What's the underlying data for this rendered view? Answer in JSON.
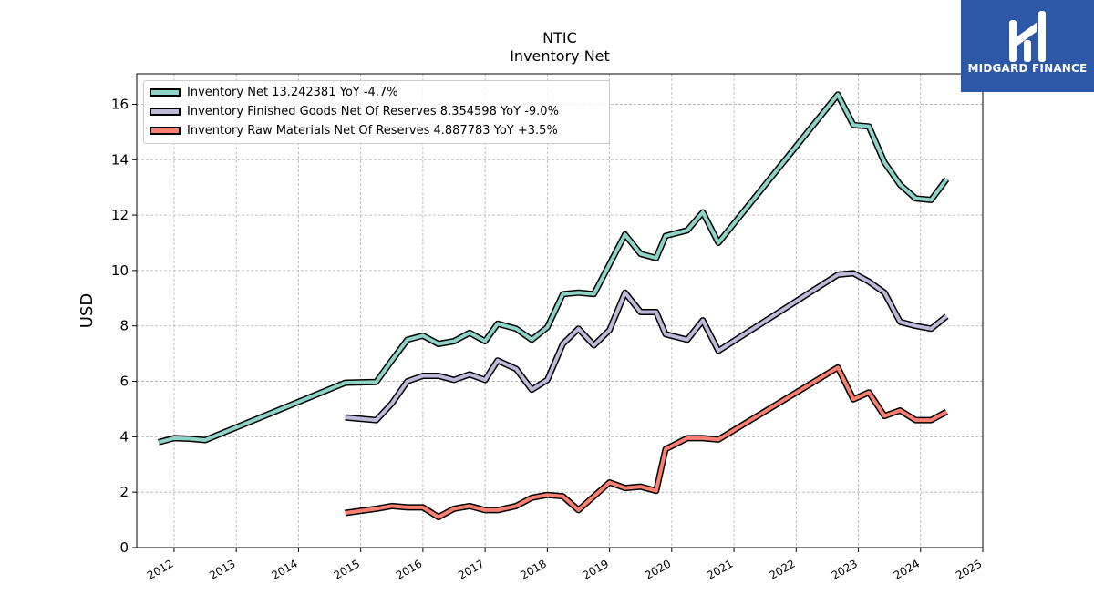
{
  "logo": {
    "text": "MIDGARD FINANCE",
    "background": "#2d58a8"
  },
  "chart_data": {
    "type": "line",
    "title": "NTIC",
    "subtitle": "Inventory Net",
    "xlabel": "",
    "ylabel": "USD",
    "xlim": [
      2011.4,
      2025.0
    ],
    "ylim": [
      0,
      17.1
    ],
    "x_ticks": [
      "2012",
      "2013",
      "2014",
      "2015",
      "2016",
      "2017",
      "2018",
      "2019",
      "2020",
      "2021",
      "2022",
      "2023",
      "2024",
      "2025"
    ],
    "y_ticks": [
      0,
      2,
      4,
      6,
      8,
      10,
      12,
      14,
      16
    ],
    "grid": true,
    "legend_position": "top-left",
    "series": [
      {
        "name": "Inventory Net  13.242381 YoY -4.7%",
        "color": "#8dd3c7",
        "points": [
          [
            2011.75,
            3.8
          ],
          [
            2012.0,
            3.95
          ],
          [
            2012.25,
            3.93
          ],
          [
            2012.5,
            3.88
          ],
          [
            2014.75,
            5.95
          ],
          [
            2015.25,
            5.98
          ],
          [
            2015.5,
            6.75
          ],
          [
            2015.75,
            7.5
          ],
          [
            2016.0,
            7.65
          ],
          [
            2016.25,
            7.35
          ],
          [
            2016.5,
            7.45
          ],
          [
            2016.75,
            7.75
          ],
          [
            2017.0,
            7.45
          ],
          [
            2017.2,
            8.08
          ],
          [
            2017.5,
            7.9
          ],
          [
            2017.75,
            7.5
          ],
          [
            2018.0,
            7.95
          ],
          [
            2018.25,
            9.15
          ],
          [
            2018.5,
            9.2
          ],
          [
            2018.75,
            9.15
          ],
          [
            2019.25,
            11.3
          ],
          [
            2019.5,
            10.6
          ],
          [
            2019.75,
            10.45
          ],
          [
            2019.9,
            11.25
          ],
          [
            2020.25,
            11.45
          ],
          [
            2020.5,
            12.1
          ],
          [
            2020.75,
            11.0
          ],
          [
            2022.67,
            16.35
          ],
          [
            2022.92,
            15.25
          ],
          [
            2023.17,
            15.2
          ],
          [
            2023.42,
            13.9
          ],
          [
            2023.67,
            13.1
          ],
          [
            2023.92,
            12.6
          ],
          [
            2024.17,
            12.55
          ],
          [
            2024.42,
            13.3
          ]
        ]
      },
      {
        "name": "Inventory Finished Goods Net Of Reserves  8.354598 YoY -9.0%",
        "color": "#bebada",
        "points": [
          [
            2014.75,
            4.7
          ],
          [
            2015.25,
            4.6
          ],
          [
            2015.5,
            5.2
          ],
          [
            2015.75,
            6.0
          ],
          [
            2016.0,
            6.2
          ],
          [
            2016.25,
            6.2
          ],
          [
            2016.5,
            6.05
          ],
          [
            2016.75,
            6.25
          ],
          [
            2017.0,
            6.05
          ],
          [
            2017.2,
            6.75
          ],
          [
            2017.5,
            6.45
          ],
          [
            2017.75,
            5.7
          ],
          [
            2018.0,
            6.05
          ],
          [
            2018.25,
            7.35
          ],
          [
            2018.5,
            7.9
          ],
          [
            2018.75,
            7.3
          ],
          [
            2019.0,
            7.85
          ],
          [
            2019.25,
            9.2
          ],
          [
            2019.5,
            8.5
          ],
          [
            2019.75,
            8.5
          ],
          [
            2019.9,
            7.7
          ],
          [
            2020.25,
            7.5
          ],
          [
            2020.5,
            8.2
          ],
          [
            2020.75,
            7.1
          ],
          [
            2022.67,
            9.85
          ],
          [
            2022.92,
            9.9
          ],
          [
            2023.17,
            9.6
          ],
          [
            2023.42,
            9.2
          ],
          [
            2023.67,
            8.15
          ],
          [
            2023.92,
            8.0
          ],
          [
            2024.17,
            7.9
          ],
          [
            2024.42,
            8.35
          ]
        ]
      },
      {
        "name": "Inventory Raw Materials Net Of Reserves  4.887783 YoY +3.5%",
        "color": "#fb8072",
        "points": [
          [
            2014.75,
            1.25
          ],
          [
            2015.25,
            1.4
          ],
          [
            2015.5,
            1.5
          ],
          [
            2015.75,
            1.45
          ],
          [
            2016.0,
            1.45
          ],
          [
            2016.25,
            1.1
          ],
          [
            2016.5,
            1.4
          ],
          [
            2016.75,
            1.5
          ],
          [
            2017.0,
            1.35
          ],
          [
            2017.2,
            1.35
          ],
          [
            2017.5,
            1.5
          ],
          [
            2017.75,
            1.8
          ],
          [
            2018.0,
            1.9
          ],
          [
            2018.25,
            1.85
          ],
          [
            2018.5,
            1.35
          ],
          [
            2018.75,
            1.85
          ],
          [
            2019.0,
            2.35
          ],
          [
            2019.25,
            2.15
          ],
          [
            2019.5,
            2.2
          ],
          [
            2019.75,
            2.05
          ],
          [
            2019.9,
            3.55
          ],
          [
            2020.25,
            3.95
          ],
          [
            2020.5,
            3.95
          ],
          [
            2020.75,
            3.9
          ],
          [
            2022.67,
            6.5
          ],
          [
            2022.92,
            5.35
          ],
          [
            2023.17,
            5.6
          ],
          [
            2023.42,
            4.75
          ],
          [
            2023.67,
            4.95
          ],
          [
            2023.92,
            4.6
          ],
          [
            2024.17,
            4.6
          ],
          [
            2024.42,
            4.9
          ]
        ]
      }
    ]
  }
}
